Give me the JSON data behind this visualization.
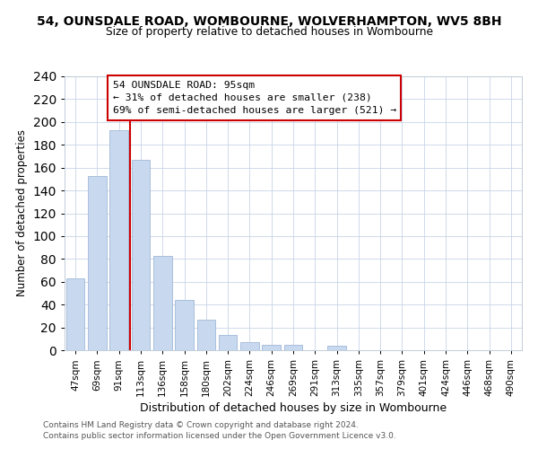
{
  "title": "54, OUNSDALE ROAD, WOMBOURNE, WOLVERHAMPTON, WV5 8BH",
  "subtitle": "Size of property relative to detached houses in Wombourne",
  "xlabel": "Distribution of detached houses by size in Wombourne",
  "ylabel": "Number of detached properties",
  "footer1": "Contains HM Land Registry data © Crown copyright and database right 2024.",
  "footer2": "Contains public sector information licensed under the Open Government Licence v3.0.",
  "bar_labels": [
    "47sqm",
    "69sqm",
    "91sqm",
    "113sqm",
    "136sqm",
    "158sqm",
    "180sqm",
    "202sqm",
    "224sqm",
    "246sqm",
    "269sqm",
    "291sqm",
    "313sqm",
    "335sqm",
    "357sqm",
    "379sqm",
    "401sqm",
    "424sqm",
    "446sqm",
    "468sqm",
    "490sqm"
  ],
  "bar_values": [
    63,
    153,
    193,
    167,
    83,
    44,
    27,
    13,
    7,
    5,
    5,
    0,
    4,
    0,
    0,
    0,
    0,
    0,
    0,
    0,
    0
  ],
  "bar_color": "#c8d9ef",
  "bar_edge_color": "#a0b8d8",
  "vline_color": "#cc0000",
  "annotation_title": "54 OUNSDALE ROAD: 95sqm",
  "annotation_line1": "← 31% of detached houses are smaller (238)",
  "annotation_line2": "69% of semi-detached houses are larger (521) →",
  "annotation_box_color": "#ffffff",
  "annotation_box_edge": "#cc0000",
  "ylim": [
    0,
    240
  ],
  "yticks": [
    0,
    20,
    40,
    60,
    80,
    100,
    120,
    140,
    160,
    180,
    200,
    220,
    240
  ],
  "background_color": "#ffffff",
  "grid_color": "#c8d4e8"
}
